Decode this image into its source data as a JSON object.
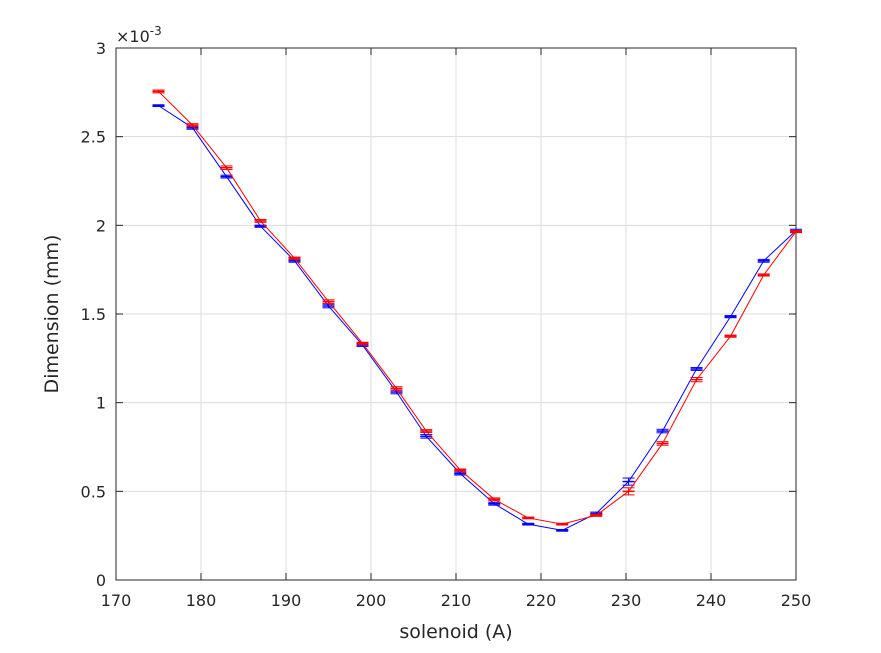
{
  "chart_data": {
    "type": "line",
    "title": "",
    "xlabel": "solenoid (A)",
    "ylabel": "Dimension (mm)",
    "xlim": [
      170,
      250
    ],
    "ylim": [
      0,
      3
    ],
    "y_exponent_label": "×10",
    "y_exponent_power": "-3",
    "y_scale_note": "values in units of 10^-3 mm",
    "x_ticks": [
      "170",
      "180",
      "190",
      "200",
      "210",
      "220",
      "230",
      "240",
      "250"
    ],
    "y_ticks": [
      "0",
      "0.5",
      "1",
      "1.5",
      "2",
      "2.5",
      "3"
    ],
    "grid": true,
    "error_bars": true,
    "series": [
      {
        "color": "#0000ff",
        "x": [
          175,
          179,
          183,
          187,
          191,
          195,
          199,
          203,
          206.5,
          210.5,
          214.5,
          218.5,
          222.5,
          226.5,
          230.3,
          234.3,
          238.3,
          242.3,
          246.2,
          250
        ],
        "y": [
          2.675,
          2.55,
          2.275,
          1.995,
          1.8,
          1.545,
          1.325,
          1.06,
          0.81,
          0.6,
          0.43,
          0.315,
          0.28,
          0.375,
          0.555,
          0.84,
          1.19,
          1.485,
          1.8,
          1.97
        ],
        "err": [
          0.005,
          0.008,
          0.008,
          0.006,
          0.008,
          0.01,
          0.008,
          0.01,
          0.01,
          0.008,
          0.008,
          0.005,
          0.005,
          0.008,
          0.02,
          0.01,
          0.008,
          0.006,
          0.008,
          0.008
        ]
      },
      {
        "color": "#ff0000",
        "x": [
          175,
          179,
          183,
          187,
          191,
          195,
          199,
          203,
          206.5,
          210.5,
          214.5,
          218.5,
          222.5,
          226.5,
          230.3,
          234.3,
          238.3,
          242.3,
          246.2,
          250
        ],
        "y": [
          2.755,
          2.565,
          2.325,
          2.025,
          1.815,
          1.57,
          1.335,
          1.08,
          0.84,
          0.62,
          0.455,
          0.35,
          0.315,
          0.365,
          0.5,
          0.77,
          1.13,
          1.375,
          1.72,
          1.965
        ],
        "err": [
          0.008,
          0.008,
          0.01,
          0.008,
          0.006,
          0.01,
          0.006,
          0.01,
          0.008,
          0.006,
          0.008,
          0.005,
          0.005,
          0.006,
          0.02,
          0.01,
          0.012,
          0.006,
          0.006,
          0.006
        ]
      }
    ]
  }
}
